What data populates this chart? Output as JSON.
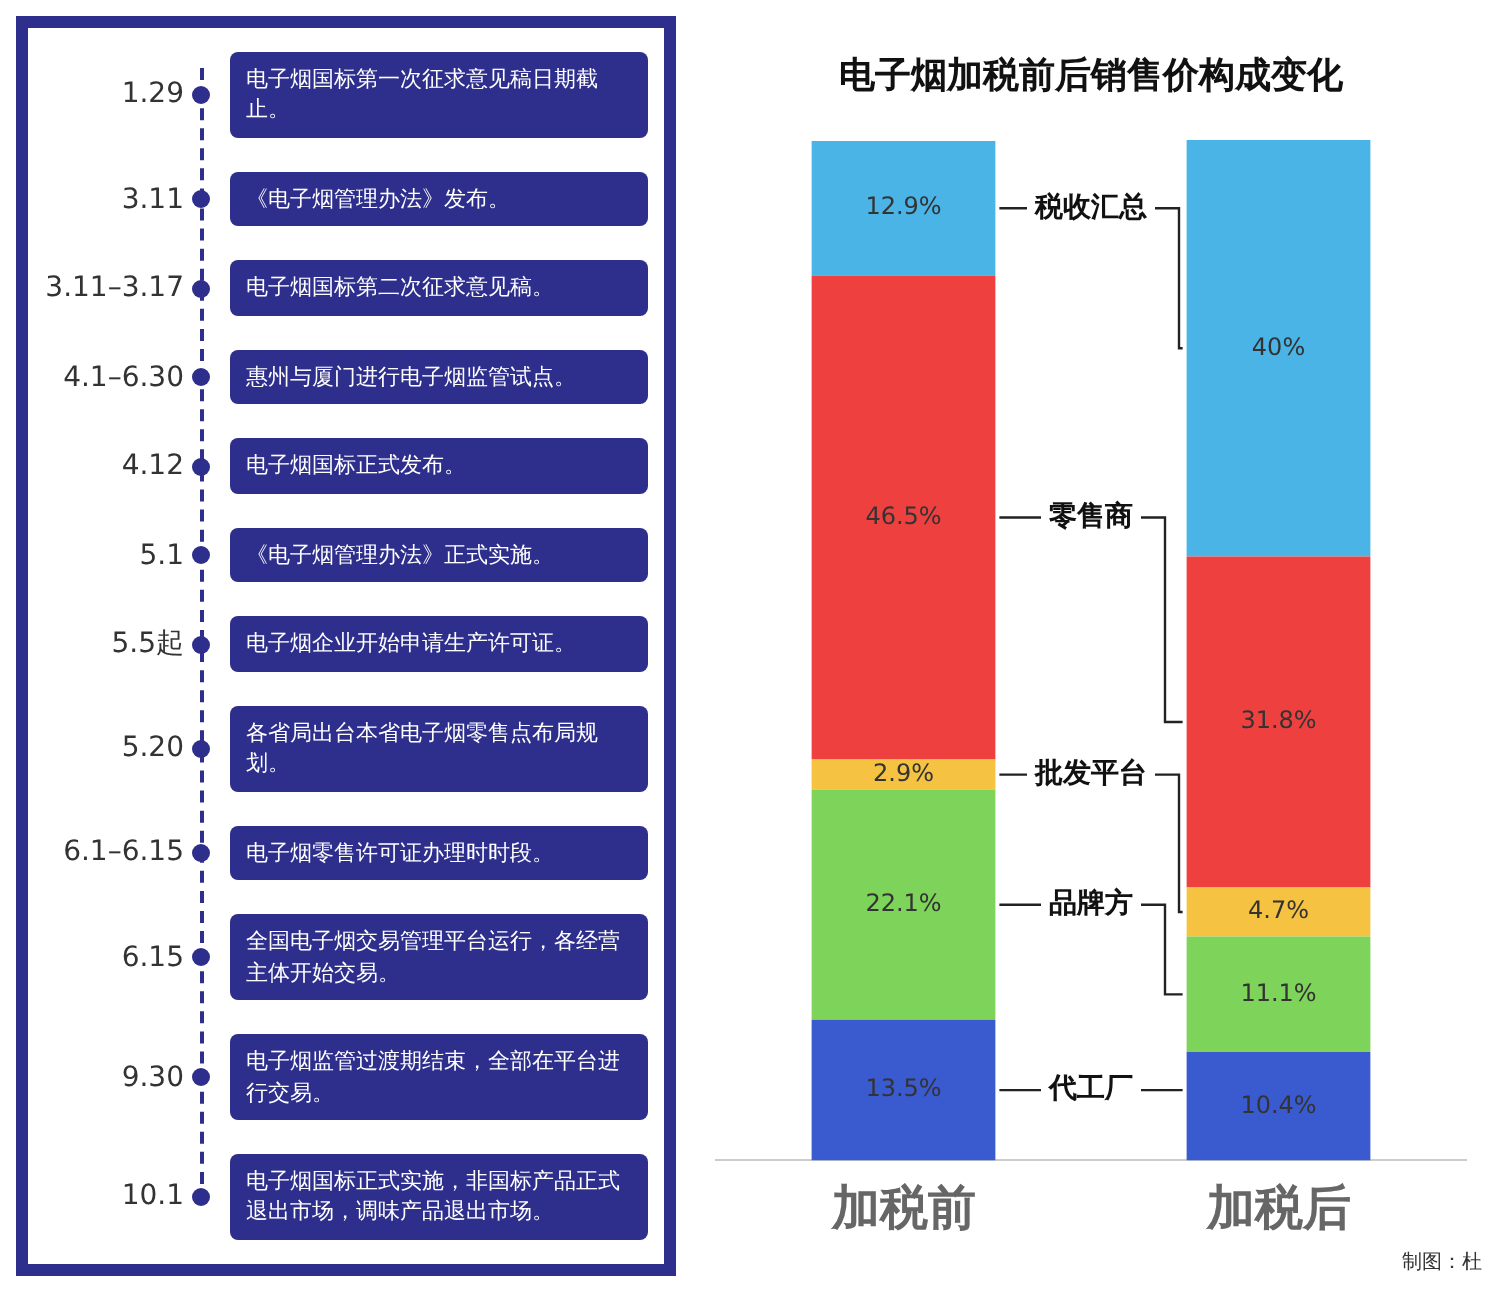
{
  "chart_data": [
    {
      "type": "other",
      "categories": [
        "1.29",
        "3.11",
        "3.11–3.17",
        "4.1–6.30",
        "4.12",
        "5.1",
        "5.5起",
        "5.20",
        "6.1–6.15",
        "6.15",
        "9.30",
        "10.1"
      ],
      "annotations": [
        "电子烟国标第一次征求意见稿日期截止。",
        "《电子烟管理办法》发布。",
        "电子烟国标第二次征求意见稿。",
        "惠州与厦门进行电子烟监管试点。",
        "电子烟国标正式发布。",
        "《电子烟管理办法》正式实施。",
        "电子烟企业开始申请生产许可证。",
        "各省局出台本省电子烟零售点布局规划。",
        "电子烟零售许可证办理时时段。",
        "全国电子烟交易管理平台运行，各经营主体开始交易。",
        "电子烟监管过渡期结束，全部在平台进行交易。",
        "电子烟国标正式实施，非国标产品正式退出市场，调味产品退出市场。"
      ]
    },
    {
      "type": "bar",
      "title": "电子烟加税前后销售价构成变化",
      "categories": [
        "加税前",
        "加税后"
      ],
      "stacked": true,
      "legend": false,
      "grid": false,
      "tick_labels": "x",
      "series": [
        {
          "name": "代工厂",
          "color": "#3a5bd0",
          "values": [
            13.5,
            10.4
          ],
          "value_labels": [
            "13.5%",
            "10.4%"
          ]
        },
        {
          "name": "品牌方",
          "color": "#7ed35a",
          "values": [
            22.1,
            11.1
          ],
          "value_labels": [
            "22.1%",
            "11.1%"
          ]
        },
        {
          "name": "批发平台",
          "color": "#f5c242",
          "values": [
            2.9,
            4.7
          ],
          "value_labels": [
            "2.9%",
            "4.7%"
          ]
        },
        {
          "name": "零售商",
          "color": "#ef4040",
          "values": [
            46.5,
            31.8
          ],
          "value_labels": [
            "46.5%",
            "31.8%"
          ]
        },
        {
          "name": "税收汇总",
          "color": "#4ab4e6",
          "values": [
            12.9,
            40
          ],
          "value_labels": [
            "12.9%",
            "40%"
          ]
        }
      ],
      "annotations": [
        "制图：杜"
      ]
    }
  ]
}
